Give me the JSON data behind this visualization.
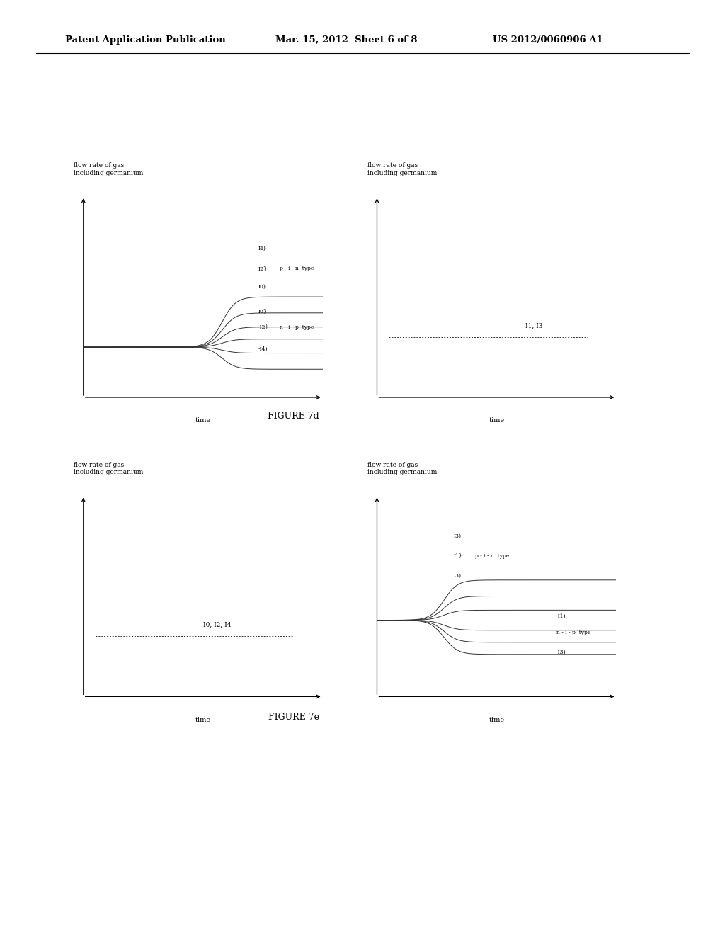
{
  "header_left": "Patent Application Publication",
  "header_center": "Mar. 15, 2012  Sheet 6 of 8",
  "header_right": "US 2012/0060906 A1",
  "figure_label_d": "FIGURE 7d",
  "figure_label_e": "FIGURE 7e",
  "bg_color": "#ffffff",
  "text_color": "#000000",
  "line_color": "#333333",
  "ylabel": "flow rate of gas\nincluding germanium",
  "xlabel": "time"
}
